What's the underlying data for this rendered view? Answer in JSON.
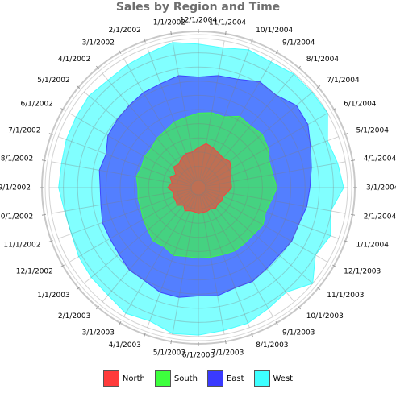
{
  "chart_data": {
    "type": "radar",
    "title": "Sales by Region and Time",
    "categories": [
      "12/1/2004",
      "11/1/2004",
      "10/1/2004",
      "9/1/2004",
      "8/1/2004",
      "7/1/2004",
      "6/1/2004",
      "5/1/2004",
      "4/1/2004",
      "3/1/2004",
      "2/1/2004",
      "1/1/2004",
      "12/1/2003",
      "11/1/2003",
      "10/1/2003",
      "9/1/2003",
      "8/1/2003",
      "7/1/2003",
      "6/1/2003",
      "5/1/2003",
      "4/1/2003",
      "3/1/2003",
      "2/1/2003",
      "1/1/2003",
      "12/1/2002",
      "11/1/2002",
      "10/1/2002",
      "9/1/2002",
      "8/1/2002",
      "7/1/2002",
      "6/1/2002",
      "5/1/2002",
      "4/1/2002",
      "3/1/2002",
      "2/1/2002",
      "1/1/2002"
    ],
    "rmax": 10,
    "rings": 10,
    "grid": true,
    "stacked": true,
    "legend_position": "bottom",
    "series": [
      {
        "name": "North",
        "color": "#ff3b3b",
        "values": [
          4.2,
          4.8,
          4.5,
          4.2,
          4.0,
          4.3,
          3.9,
          3.5,
          3.3,
          3.3,
          2.8,
          2.4,
          2.5,
          2.3,
          2.5,
          2.2,
          2.3,
          2.3,
          2.4,
          2.2,
          2.2,
          2.5,
          2.0,
          2.6,
          2.4,
          2.5,
          2.3,
          3.0,
          2.5,
          2.9,
          2.4,
          3.2,
          3.0,
          3.4,
          3.7,
          3.7
        ]
      },
      {
        "name": "South",
        "color": "#3dff3d",
        "values": [
          8.6,
          8.8,
          8.7,
          9.6,
          9.4,
          9.7,
          9.3,
          8.7,
          8.7,
          9.1,
          8.5,
          8.2,
          8.6,
          8.3,
          8.3,
          8.4,
          8.2,
          8.1,
          8.1,
          8.0,
          8.3,
          7.8,
          8.0,
          7.5,
          7.2,
          6.9,
          6.9,
          6.8,
          7.1,
          6.8,
          7.0,
          6.9,
          7.3,
          7.5,
          8.0,
          8.2
        ]
      },
      {
        "name": "East",
        "color": "#3a3aff",
        "values": [
          13.2,
          13.6,
          13.8,
          14.7,
          14.5,
          15.4,
          15.2,
          14.3,
          13.7,
          13.3,
          13.1,
          12.7,
          12.8,
          12.5,
          12.6,
          12.9,
          12.7,
          13.1,
          12.9,
          13.3,
          13.3,
          12.8,
          12.8,
          12.3,
          12.1,
          12.1,
          11.7,
          11.6,
          11.9,
          11.6,
          12.4,
          12.6,
          12.8,
          13.1,
          13.2,
          13.6
        ]
      },
      {
        "name": "West",
        "color": "#3dffff",
        "values": [
          17.4,
          17.2,
          17.8,
          17.6,
          18.0,
          18.0,
          18.1,
          16.6,
          17.1,
          17.6,
          16.2,
          17.0,
          16.3,
          18.1,
          16.5,
          16.9,
          17.5,
          17.6,
          17.9,
          18.0,
          17.2,
          17.6,
          17.0,
          16.9,
          16.7,
          16.3,
          16.4,
          16.9,
          16.8,
          17.0,
          17.1,
          17.3,
          17.0,
          17.2,
          17.4,
          17.9
        ]
      }
    ]
  }
}
